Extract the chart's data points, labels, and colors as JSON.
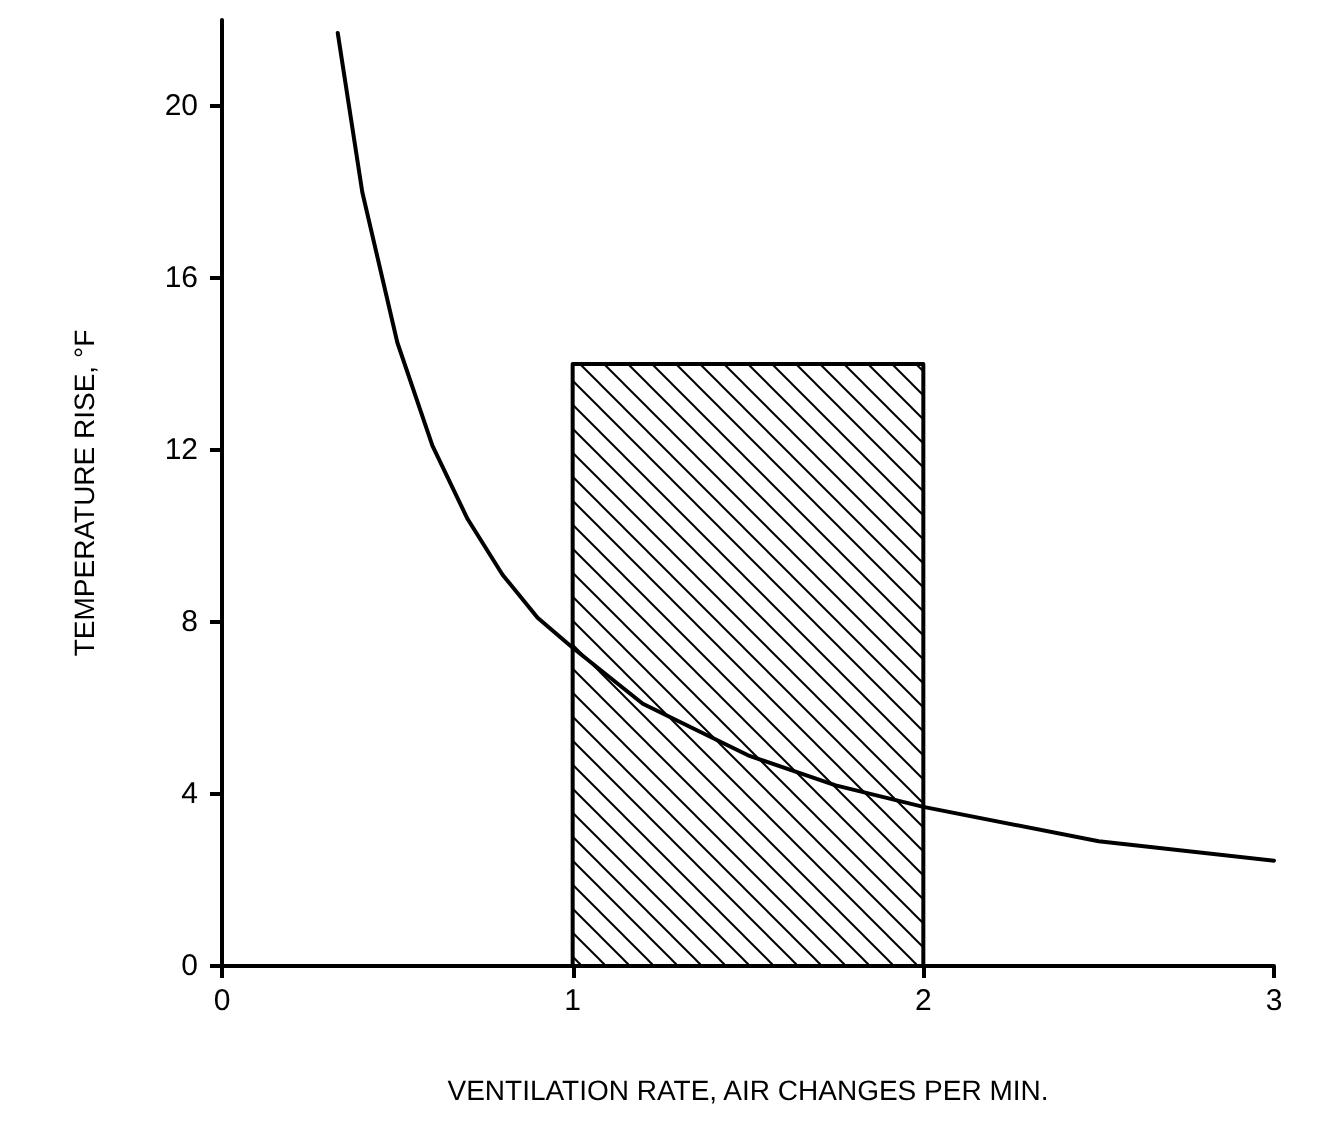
{
  "chart_data": {
    "type": "line",
    "xlabel": "VENTILATION RATE, AIR CHANGES PER MIN.",
    "ylabel": "TEMPERATURE RISE, °F",
    "xlim": [
      0,
      3
    ],
    "xticks": [
      0,
      1,
      2,
      3
    ],
    "ylim": [
      0,
      22
    ],
    "yticks": [
      0,
      4,
      8,
      12,
      16,
      20
    ],
    "grid": false,
    "marker": "none",
    "line_style": "solid",
    "series": [
      {
        "color": "#000000",
        "x": [
          0.33,
          0.4,
          0.5,
          0.6,
          0.7,
          0.8,
          0.9,
          1.0,
          1.2,
          1.5,
          1.75,
          2.0,
          2.5,
          3.0
        ],
        "values": [
          21.7,
          18,
          14.5,
          12.1,
          10.4,
          9.1,
          8.1,
          7.4,
          6.1,
          4.9,
          4.2,
          3.7,
          2.9,
          2.45
        ]
      },
      {
        "type": "area",
        "color": "#000000",
        "x": [
          1,
          1,
          2,
          2
        ],
        "values": [
          0,
          14,
          14,
          0
        ]
      }
    ]
  }
}
